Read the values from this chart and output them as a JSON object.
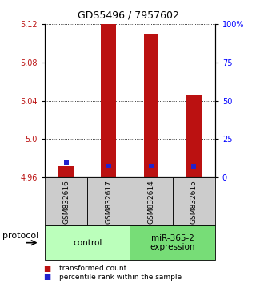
{
  "title": "GDS5496 / 7957602",
  "samples": [
    "GSM832616",
    "GSM832617",
    "GSM832614",
    "GSM832615"
  ],
  "red_values": [
    4.972,
    5.12,
    5.109,
    5.046
  ],
  "blue_values": [
    4.975,
    4.972,
    4.972,
    4.971
  ],
  "ylim": [
    4.96,
    5.12
  ],
  "yticks_left": [
    4.96,
    5.0,
    5.04,
    5.08,
    5.12
  ],
  "yticks_right_vals": [
    0,
    25,
    50,
    75,
    100
  ],
  "yticks_right_labels": [
    "0",
    "25",
    "50",
    "75",
    "100%"
  ],
  "groups": [
    {
      "label": "control",
      "samples": [
        0,
        1
      ],
      "color": "#bbffbb"
    },
    {
      "label": "miR-365-2\nexpression",
      "samples": [
        2,
        3
      ],
      "color": "#77dd77"
    }
  ],
  "protocol_label": "protocol",
  "bar_width": 0.35,
  "blue_sq_size": 4,
  "red_color": "#bb1111",
  "blue_color": "#2222cc",
  "bg_sample_label": "#cccccc",
  "legend_entries": [
    "transformed count",
    "percentile rank within the sample"
  ]
}
